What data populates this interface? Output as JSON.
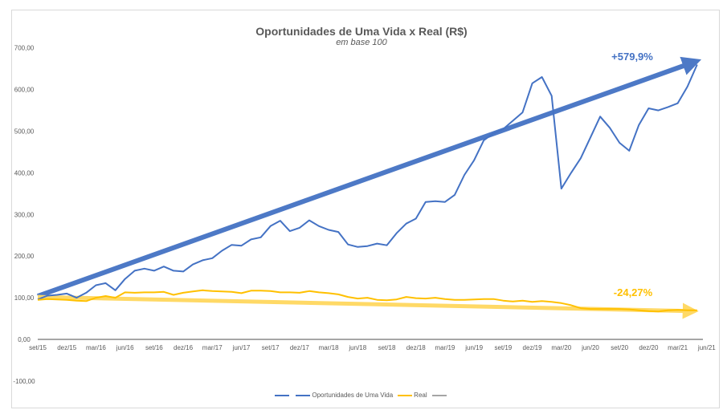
{
  "chart_data": {
    "type": "line",
    "title": "Oportunidades de Uma Vida x Real (R$)",
    "subtitle": "em base 100",
    "ylim": [
      -100,
      700
    ],
    "y_ticks": [
      "-100,00",
      "0,00",
      "100,00",
      "200,00",
      "300,00",
      "400,00",
      "500,00",
      "600,00",
      "700,00"
    ],
    "x_tick_labels": [
      "set/15",
      "dez/15",
      "mar/16",
      "jun/16",
      "set/16",
      "dez/16",
      "mar/17",
      "jun/17",
      "set/17",
      "dez/17",
      "mar/18",
      "jun/18",
      "set/18",
      "dez/18",
      "mar/19",
      "jun/19",
      "set/19",
      "dez/19",
      "mar/20",
      "jun/20",
      "set/20",
      "dez/20",
      "mar/21",
      "jun/21"
    ],
    "x_start": "set/15",
    "x_interval": "month",
    "grid": false,
    "legend_placement": "bottom",
    "series": [
      {
        "name": "",
        "color": "#4472C4",
        "values": []
      },
      {
        "name": "Oportunidades de Uma Vida",
        "color": "#4472C4",
        "values": [
          96,
          105,
          107,
          110,
          100,
          112,
          130,
          135,
          118,
          145,
          165,
          170,
          165,
          175,
          165,
          163,
          180,
          190,
          195,
          213,
          227,
          225,
          240,
          245,
          272,
          285,
          260,
          268,
          286,
          272,
          263,
          258,
          228,
          222,
          224,
          230,
          226,
          255,
          278,
          290,
          330,
          332,
          330,
          347,
          395,
          430,
          478,
          495,
          505,
          525,
          545,
          615,
          630,
          585,
          362,
          400,
          435,
          485,
          535,
          508,
          472,
          453,
          515,
          555,
          550,
          558,
          567,
          607,
          660
        ]
      },
      {
        "name": "Real",
        "color": "#FFC000",
        "values": [
          95,
          97,
          96,
          95,
          93,
          92,
          100,
          104,
          100,
          113,
          112,
          113,
          113,
          114,
          107,
          112,
          115,
          118,
          116,
          115,
          114,
          111,
          117,
          117,
          116,
          113,
          113,
          112,
          116,
          113,
          111,
          108,
          102,
          98,
          100,
          95,
          94,
          96,
          102,
          99,
          98,
          100,
          97,
          95,
          95,
          96,
          97,
          97,
          93,
          91,
          93,
          90,
          92,
          90,
          87,
          82,
          75,
          73,
          73,
          73,
          73,
          72,
          70,
          68,
          67,
          70,
          71,
          70,
          70
        ]
      },
      {
        "name": "",
        "color": "#A5A5A5",
        "values": []
      }
    ],
    "annotations": [
      {
        "text": "+579,9%",
        "color": "#4472C4",
        "trend_from": 100,
        "trend_to": 679.9
      },
      {
        "text": "-24,27%",
        "color": "#FFC000",
        "trend_from": 100,
        "trend_to": 75.73
      }
    ]
  }
}
